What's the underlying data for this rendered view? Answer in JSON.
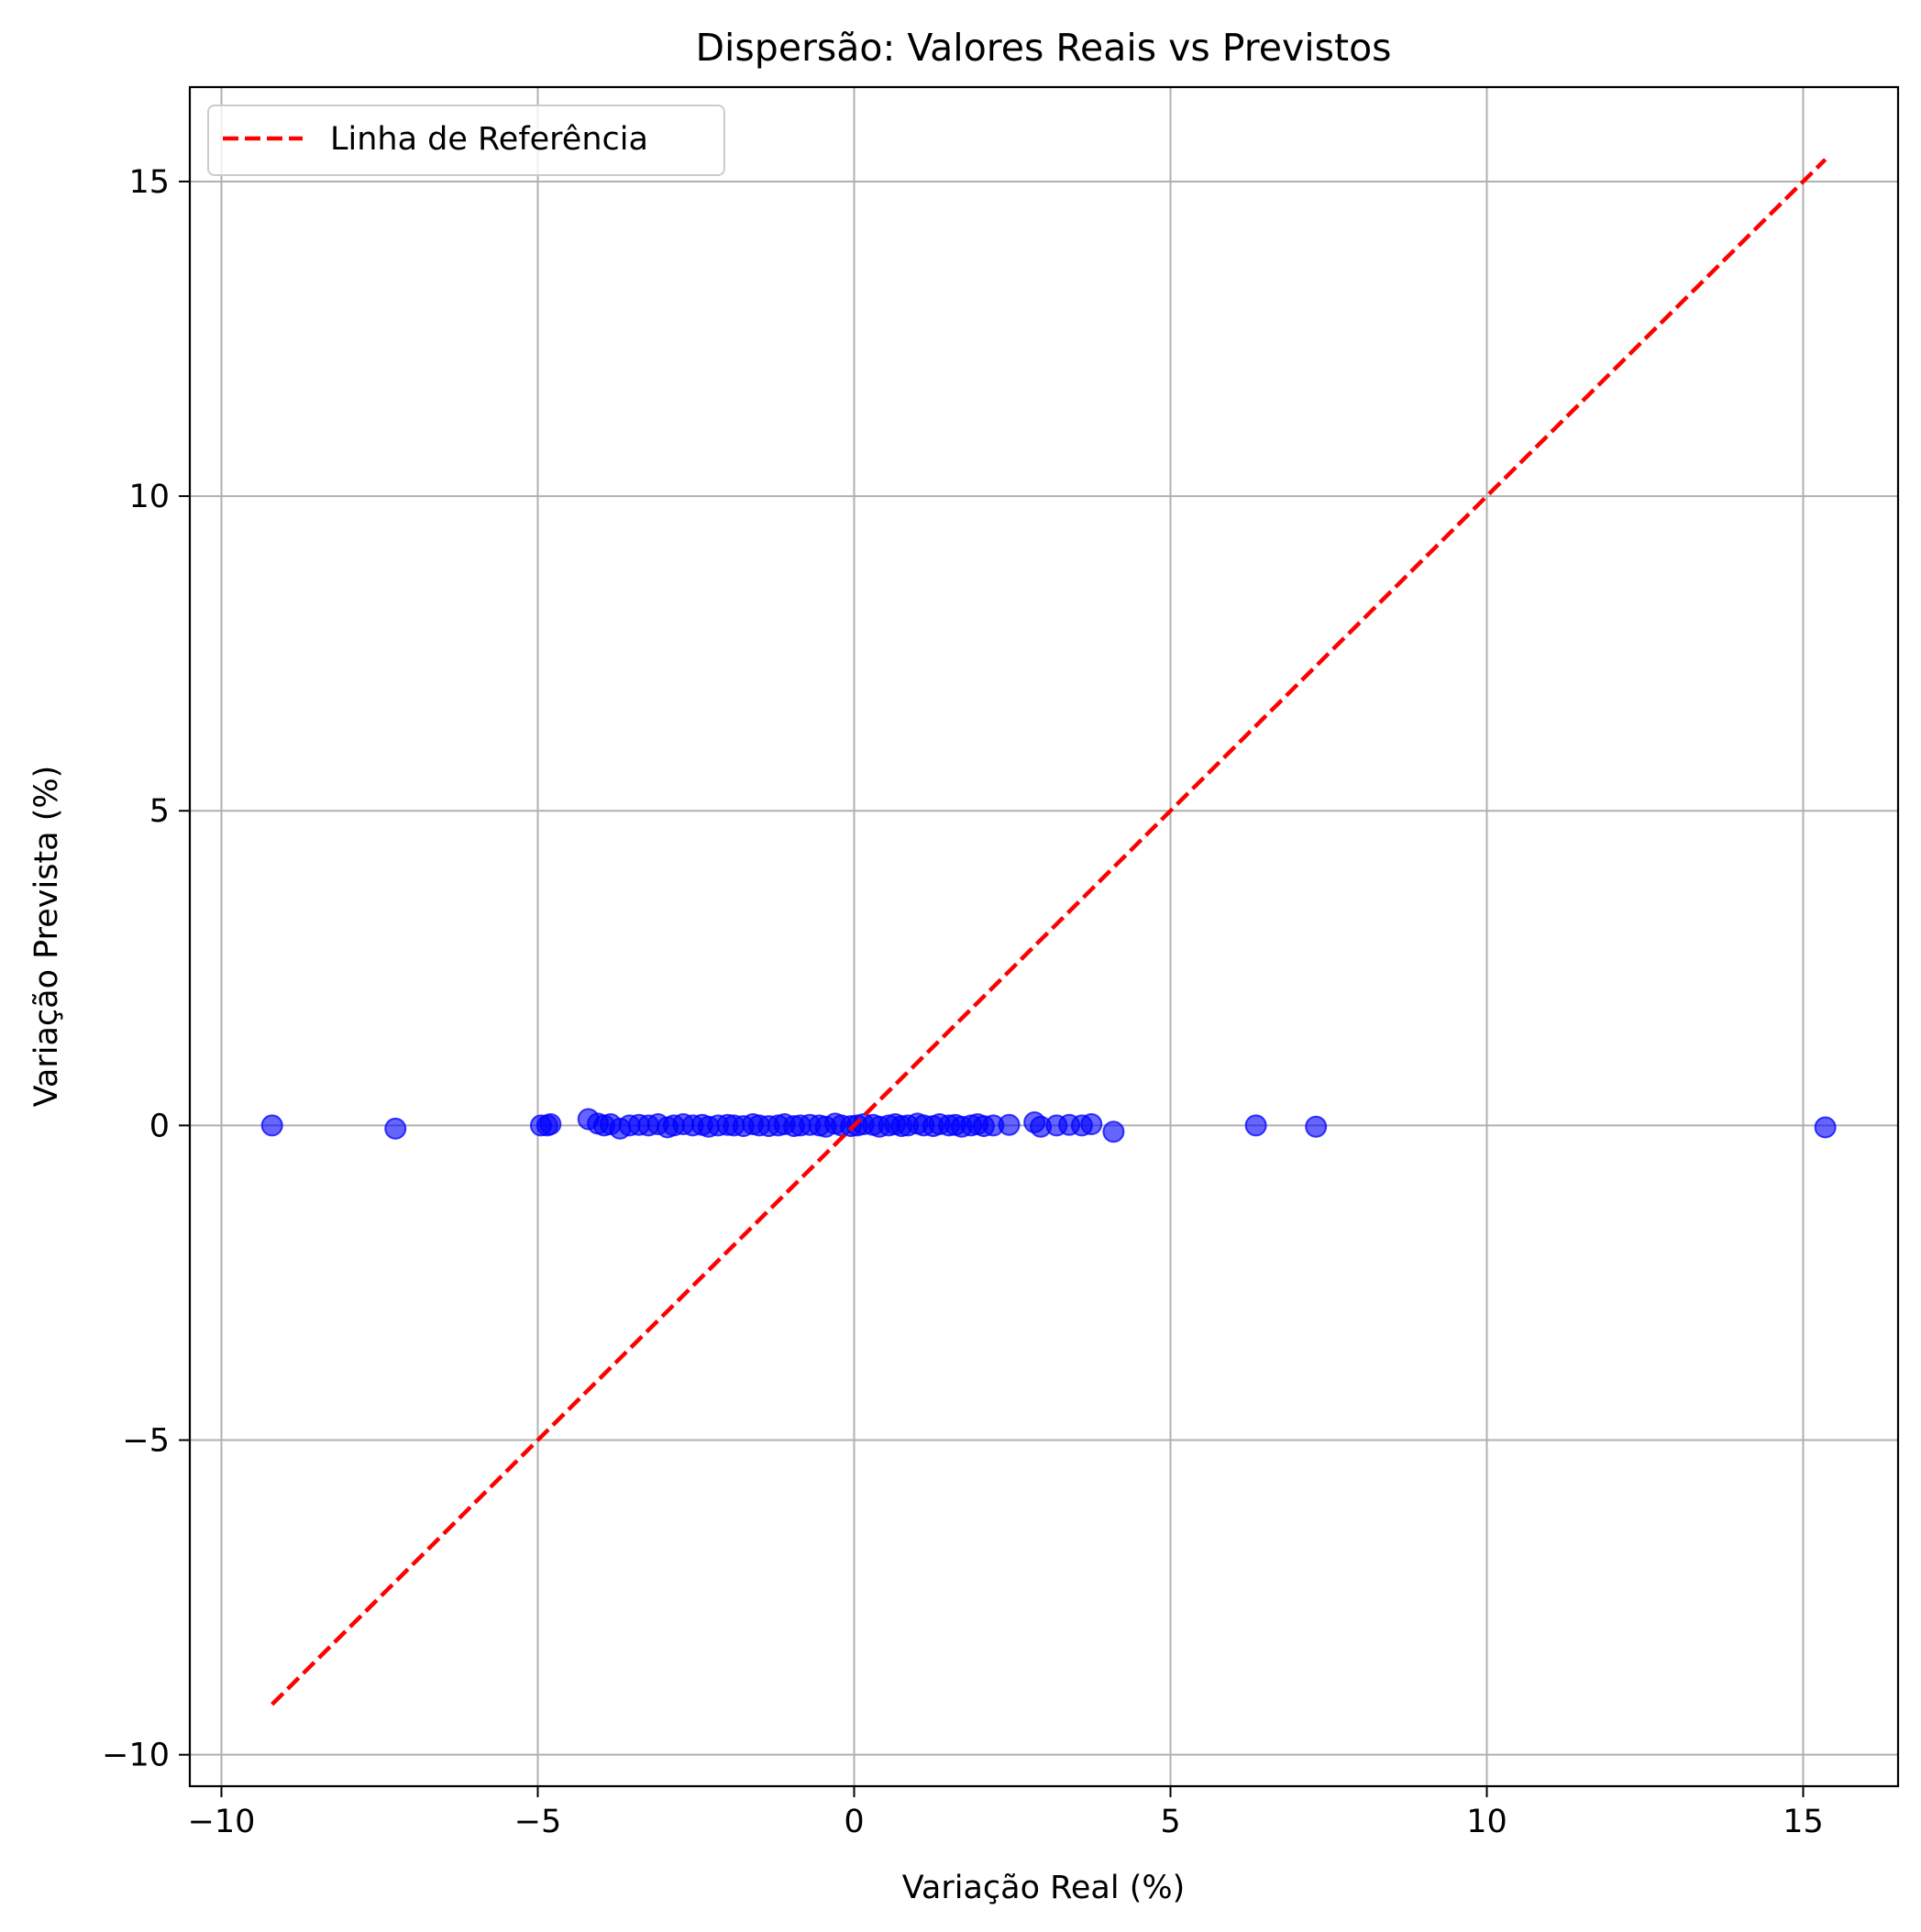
{
  "chart_data": {
    "type": "scatter",
    "title": "Dispersão: Valores Reais vs Previstos",
    "xlabel": "Variação Real (%)",
    "ylabel": "Variação Prevista (%)",
    "xlim": [
      -10.5,
      16.5
    ],
    "ylim": [
      -10.5,
      16.5
    ],
    "xticks": [
      -10,
      -5,
      0,
      5,
      10,
      15
    ],
    "yticks": [
      -10,
      -5,
      0,
      5,
      10,
      15
    ],
    "xtick_labels": [
      "−10",
      "−5",
      "0",
      "5",
      "10",
      "15"
    ],
    "ytick_labels": [
      "−10",
      "−5",
      "0",
      "5",
      "10",
      "15"
    ],
    "grid": true,
    "legend_position": "top-left",
    "series": [
      {
        "kind": "scatter",
        "color": "#0000ff",
        "alpha": 0.6,
        "x": [
          -9.2,
          -7.25,
          -4.95,
          -4.85,
          -4.8,
          -4.2,
          -4.05,
          -3.95,
          -3.85,
          -3.7,
          -3.55,
          -3.4,
          -3.25,
          -3.1,
          -2.95,
          -2.85,
          -2.7,
          -2.55,
          -2.4,
          -2.3,
          -2.15,
          -2.0,
          -1.9,
          -1.75,
          -1.6,
          -1.5,
          -1.35,
          -1.2,
          -1.1,
          -0.95,
          -0.85,
          -0.7,
          -0.55,
          -0.45,
          -0.3,
          -0.2,
          -0.05,
          0.05,
          0.15,
          0.3,
          0.4,
          0.55,
          0.65,
          0.75,
          0.85,
          1.0,
          1.1,
          1.25,
          1.35,
          1.5,
          1.6,
          1.7,
          1.85,
          1.95,
          2.05,
          2.2,
          2.45,
          2.85,
          2.95,
          3.2,
          3.4,
          3.6,
          3.75,
          4.1,
          6.35,
          7.3,
          15.35
        ],
        "y": [
          0.0,
          -0.05,
          0.0,
          0.0,
          0.02,
          0.1,
          0.03,
          0.0,
          0.02,
          -0.05,
          0.0,
          0.01,
          0.0,
          0.02,
          -0.03,
          0.0,
          0.02,
          0.0,
          0.01,
          -0.02,
          0.0,
          0.01,
          0.0,
          -0.01,
          0.02,
          0.0,
          -0.01,
          0.0,
          0.02,
          -0.01,
          0.0,
          0.01,
          0.0,
          -0.02,
          0.03,
          0.0,
          -0.01,
          0.0,
          0.02,
          0.01,
          -0.02,
          0.0,
          0.02,
          -0.01,
          0.0,
          0.03,
          0.0,
          -0.01,
          0.02,
          0.0,
          0.01,
          -0.02,
          0.0,
          0.02,
          -0.01,
          0.0,
          0.01,
          0.05,
          -0.02,
          0.0,
          0.01,
          0.0,
          0.02,
          -0.1,
          0.0,
          -0.02,
          -0.03
        ]
      },
      {
        "kind": "line",
        "name": "Linha de Referência",
        "color": "#ff0000",
        "dash": "dashed",
        "x": [
          -9.2,
          15.35
        ],
        "y": [
          -9.2,
          15.35
        ]
      }
    ]
  }
}
